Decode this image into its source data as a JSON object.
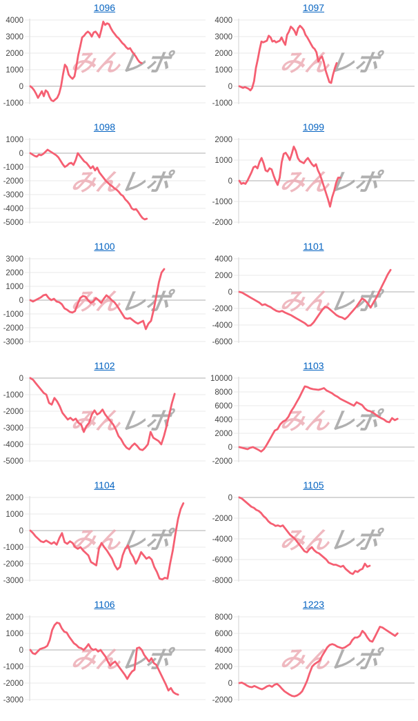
{
  "page": {
    "background": "#ffffff"
  },
  "colors": {
    "line": "#f55f72",
    "grid": "#ededed",
    "zero_line": "#c9c9c9",
    "axis_line": "#d9d9d9",
    "tick_label": "#434343",
    "link": "#0563c1",
    "watermark_pink": "#eba8b0",
    "watermark_gray": "#a2a2a2"
  },
  "watermark": {
    "text_pink": "みん",
    "text_gray": "レポ"
  },
  "chart_data": [
    {
      "type": "line",
      "label": "1096",
      "ylim": [
        -1000,
        4000
      ],
      "ystep": 1000,
      "x_span": 0.64,
      "values": [
        0,
        -100,
        -250,
        -450,
        -700,
        -500,
        -300,
        -600,
        -250,
        -350,
        -650,
        -850,
        -900,
        -800,
        -700,
        -450,
        0,
        700,
        1300,
        1150,
        700,
        550,
        450,
        600,
        1200,
        1900,
        2400,
        2950,
        3050,
        3200,
        3300,
        3200,
        3000,
        3250,
        3300,
        3150,
        2950,
        3400,
        3900,
        3700,
        3800,
        3750,
        3500,
        3300,
        3150,
        3000,
        2900,
        2750,
        2600,
        2500,
        2350,
        2250,
        2300,
        2100,
        1950,
        1800,
        1600,
        1450,
        1400
      ]
    },
    {
      "type": "line",
      "label": "1097",
      "ylim": [
        -1000,
        4000
      ],
      "ystep": 1000,
      "x_span": 0.56,
      "values": [
        0,
        -50,
        -100,
        -50,
        -100,
        -150,
        -250,
        -100,
        300,
        1100,
        1600,
        2200,
        2700,
        2650,
        2700,
        2750,
        3050,
        2950,
        2700,
        2750,
        2650,
        2700,
        2750,
        2950,
        2700,
        2500,
        3100,
        3300,
        3600,
        3500,
        3350,
        3100,
        3500,
        3650,
        3550,
        3400,
        3100,
        2950,
        2750,
        2550,
        2350,
        2250,
        2050,
        1500,
        1700,
        1800,
        1450,
        950,
        600,
        250,
        200,
        700,
        1100,
        1400
      ]
    },
    {
      "type": "line",
      "label": "1098",
      "ylim": [
        -5000,
        1000
      ],
      "ystep": 1000,
      "x_span": 0.67,
      "values": [
        0,
        -100,
        -200,
        -250,
        -100,
        -150,
        -50,
        100,
        250,
        150,
        50,
        -50,
        -150,
        -300,
        -550,
        -800,
        -1000,
        -900,
        -750,
        -700,
        -850,
        -500,
        0,
        -200,
        -400,
        -600,
        -700,
        -900,
        -1100,
        -950,
        -1250,
        -1050,
        -1400,
        -1600,
        -1800,
        -2000,
        -2150,
        -2300,
        -2400,
        -2550,
        -2650,
        -2800,
        -3000,
        -3100,
        -3350,
        -3500,
        -3700,
        -4000,
        -4100,
        -4050,
        -4250,
        -4500,
        -4700,
        -4800,
        -4750
      ]
    },
    {
      "type": "line",
      "label": "1099",
      "ylim": [
        -2000,
        2000
      ],
      "ystep": 1000,
      "x_span": 0.58,
      "values": [
        0,
        -150,
        -100,
        -150,
        0,
        200,
        400,
        650,
        700,
        600,
        900,
        1100,
        850,
        500,
        450,
        600,
        550,
        250,
        0,
        -200,
        150,
        900,
        1300,
        1350,
        1200,
        1000,
        1300,
        1650,
        1450,
        1100,
        950,
        900,
        850,
        1000,
        1100,
        950,
        800,
        700,
        800,
        500,
        300,
        0,
        -300,
        -600,
        -900,
        -1250,
        -800,
        -500,
        -100,
        150,
        150
      ]
    },
    {
      "type": "line",
      "label": "1100",
      "ylim": [
        -3000,
        3000
      ],
      "ystep": 1000,
      "x_span": 0.77,
      "values": [
        0,
        -100,
        0,
        100,
        200,
        350,
        400,
        150,
        0,
        100,
        -100,
        -150,
        -300,
        -600,
        -700,
        -850,
        -900,
        -800,
        -300,
        150,
        300,
        250,
        0,
        -200,
        -100,
        150,
        0,
        -200,
        100,
        350,
        200,
        0,
        -150,
        -400,
        -700,
        -1000,
        -1300,
        -1350,
        -1300,
        -1450,
        -1600,
        -1700,
        -1600,
        -1500,
        -2100,
        -1700,
        -1500,
        -700,
        300,
        1300,
        2000,
        2250
      ]
    },
    {
      "type": "line",
      "label": "1101",
      "ylim": [
        -6000,
        4000
      ],
      "ystep": 2000,
      "x_span": 0.87,
      "values": [
        0,
        -100,
        -300,
        -500,
        -700,
        -900,
        -1100,
        -1300,
        -1600,
        -1500,
        -1700,
        -1850,
        -2100,
        -2300,
        -2400,
        -2300,
        -2500,
        -2650,
        -2800,
        -3000,
        -3200,
        -3400,
        -3600,
        -3800,
        -4100,
        -4050,
        -3700,
        -3200,
        -2700,
        -2200,
        -1800,
        -1900,
        -2200,
        -2500,
        -2800,
        -3000,
        -3100,
        -3300,
        -3000,
        -2600,
        -2200,
        -1800,
        -1300,
        -800,
        -1000,
        -1400,
        -1900,
        -1300,
        -700,
        0,
        700,
        1400,
        2100,
        2650
      ]
    },
    {
      "type": "line",
      "label": "1102",
      "ylim": [
        -5000,
        0
      ],
      "ystep": 1000,
      "x_span": 0.83,
      "values": [
        0,
        -100,
        -300,
        -500,
        -700,
        -900,
        -1000,
        -1500,
        -1600,
        -1200,
        -1400,
        -1700,
        -2100,
        -2300,
        -2500,
        -2400,
        -2550,
        -2450,
        -2700,
        -2800,
        -3250,
        -2900,
        -2700,
        -2200,
        -1950,
        -2200,
        -2100,
        -1900,
        -2200,
        -2400,
        -2600,
        -2800,
        -3100,
        -3500,
        -3700,
        -4000,
        -4200,
        -4300,
        -4100,
        -3950,
        -4100,
        -4300,
        -4350,
        -4200,
        -4000,
        -3250,
        -3600,
        -3700,
        -3800,
        -4000,
        -3500,
        -2900,
        -2200,
        -1500,
        -950
      ]
    },
    {
      "type": "line",
      "label": "1103",
      "ylim": [
        -2000,
        10000
      ],
      "ystep": 2000,
      "x_span": 0.91,
      "values": [
        0,
        -100,
        -200,
        -300,
        -100,
        0,
        -200,
        -400,
        -650,
        -300,
        300,
        1000,
        1700,
        2400,
        2600,
        3300,
        3700,
        3900,
        4400,
        5200,
        5800,
        6500,
        7200,
        8000,
        8800,
        8700,
        8500,
        8400,
        8350,
        8300,
        8400,
        8550,
        8200,
        8000,
        7800,
        7500,
        7300,
        7000,
        6800,
        6600,
        6400,
        6200,
        6000,
        6500,
        6300,
        6100,
        5600,
        5300,
        5200,
        5000,
        4700,
        4400,
        4200,
        4000,
        3700,
        3600,
        4200,
        3900,
        4100
      ]
    },
    {
      "type": "line",
      "label": "1104",
      "ylim": [
        -3000,
        2000
      ],
      "ystep": 1000,
      "x_span": 0.88,
      "values": [
        0,
        -150,
        -350,
        -500,
        -650,
        -700,
        -600,
        -700,
        -800,
        -700,
        -850,
        -450,
        -150,
        -700,
        -800,
        -650,
        -750,
        -1000,
        -1100,
        -1000,
        -1200,
        -1350,
        -1500,
        -1900,
        -2000,
        -2100,
        -1100,
        -750,
        -1000,
        -1200,
        -1450,
        -1700,
        -2100,
        -2350,
        -2200,
        -1500,
        -1100,
        -900,
        -1350,
        -1600,
        -2000,
        -1700,
        -1300,
        -1500,
        -1700,
        -1600,
        -1750,
        -2200,
        -2500,
        -2900,
        -2950,
        -2850,
        -2900,
        -2000,
        -1200,
        -200,
        700,
        1300,
        1650
      ]
    },
    {
      "type": "line",
      "label": "1105",
      "ylim": [
        -8000,
        0
      ],
      "ystep": 2000,
      "x_span": 0.75,
      "values": [
        0,
        -100,
        -300,
        -500,
        -700,
        -900,
        -1000,
        -1200,
        -1300,
        -1500,
        -1800,
        -2000,
        -2300,
        -2500,
        -2600,
        -2750,
        -2700,
        -2800,
        -2700,
        -3000,
        -3300,
        -3600,
        -3800,
        -4000,
        -4300,
        -4600,
        -4900,
        -5200,
        -5300,
        -5000,
        -4800,
        -5100,
        -5300,
        -5400,
        -5600,
        -5800,
        -6000,
        -6300,
        -6400,
        -6500,
        -6500,
        -6600,
        -6700,
        -6600,
        -6900,
        -7100,
        -7300,
        -7400,
        -7100,
        -7200,
        -7000,
        -6900,
        -6400,
        -6700,
        -6600
      ]
    },
    {
      "type": "line",
      "label": "1106",
      "ylim": [
        -3000,
        2000
      ],
      "ystep": 1000,
      "x_span": 0.85,
      "values": [
        0,
        -200,
        -250,
        -100,
        50,
        100,
        150,
        250,
        600,
        1200,
        1500,
        1650,
        1600,
        1300,
        1100,
        1050,
        800,
        600,
        400,
        300,
        150,
        100,
        0,
        150,
        350,
        100,
        0,
        50,
        -100,
        0,
        -200,
        -400,
        -700,
        -950,
        -800,
        -700,
        -900,
        -1100,
        -1300,
        -1500,
        -1750,
        -1500,
        -1300,
        -1200,
        100,
        150,
        0,
        -300,
        -500,
        -700,
        -500,
        -800,
        -900,
        -1200,
        -1500,
        -1800,
        -2100,
        -2450,
        -2300,
        -2550,
        -2650,
        -2700
      ]
    },
    {
      "type": "line",
      "label": "1223",
      "ylim": [
        -2000,
        8000
      ],
      "ystep": 2000,
      "x_span": 0.91,
      "values": [
        0,
        50,
        -100,
        -300,
        -450,
        -500,
        -350,
        -500,
        -650,
        -750,
        -600,
        -400,
        -300,
        -450,
        -200,
        -100,
        -350,
        -700,
        -1000,
        -1200,
        -1400,
        -1550,
        -1600,
        -1500,
        -1300,
        -1000,
        -400,
        300,
        1200,
        2000,
        2300,
        2500,
        2700,
        3300,
        3800,
        4300,
        4600,
        4700,
        4600,
        4400,
        4300,
        4200,
        4300,
        4500,
        4700,
        5200,
        5500,
        5500,
        5700,
        6300,
        6000,
        5500,
        5100,
        5000,
        5600,
        6200,
        6800,
        6700,
        6500,
        6300,
        6100,
        5900,
        5700,
        6000
      ]
    }
  ]
}
